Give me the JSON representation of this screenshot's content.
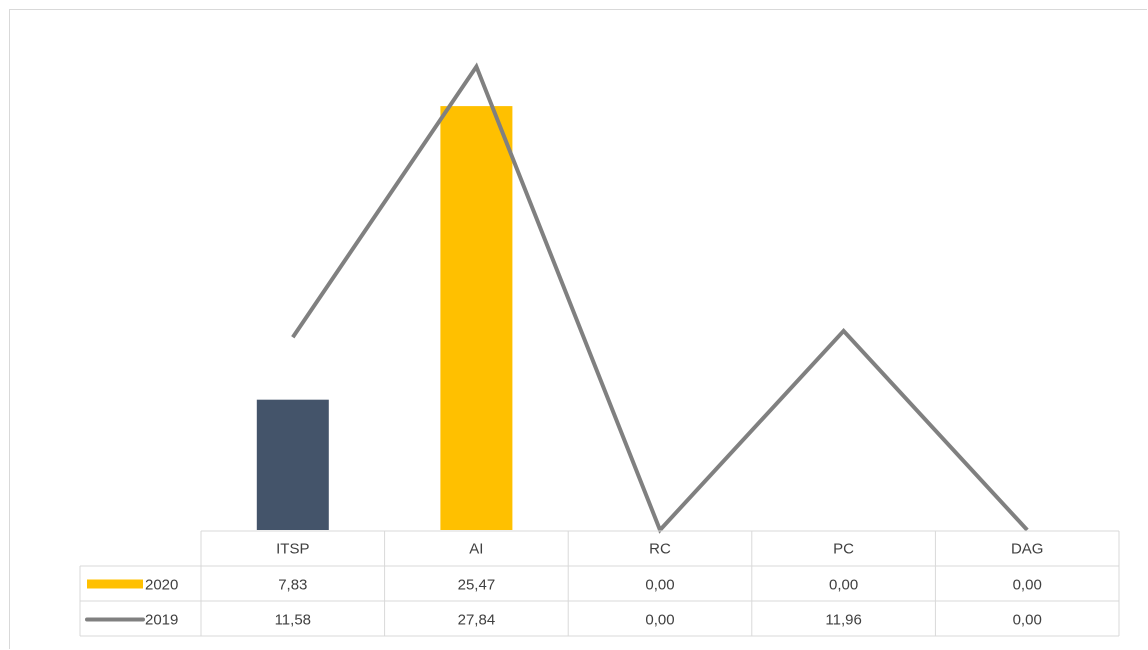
{
  "chart_data": {
    "type": "bar",
    "categories": [
      "ITSP",
      "AI",
      "RC",
      "PC",
      "DAG"
    ],
    "series": [
      {
        "name": "2020",
        "kind": "bar",
        "values": [
          7.83,
          25.47,
          0.0,
          0.0,
          0.0
        ],
        "labels": [
          "7,83",
          "25,47",
          "0,00",
          "0,00",
          "0,00"
        ],
        "color": "#FFC000",
        "point_colors": [
          "#44546A",
          "#FFC000",
          "#FFC000",
          "#FFC000",
          "#FFC000"
        ]
      },
      {
        "name": "2019",
        "kind": "line",
        "values": [
          11.58,
          27.84,
          0.0,
          11.96,
          0.0
        ],
        "labels": [
          "11,58",
          "27,84",
          "0,00",
          "11,96",
          "0,00"
        ],
        "color": "#808080"
      }
    ],
    "ylim": [
      0,
      28
    ],
    "legend": "data-table",
    "grid": false
  }
}
